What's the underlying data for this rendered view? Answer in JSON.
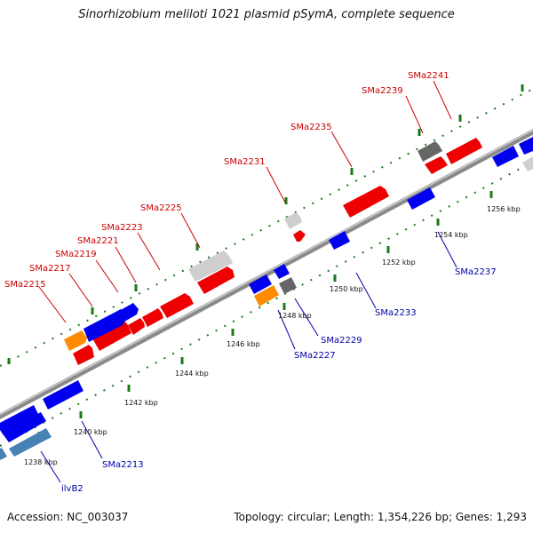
{
  "title": "Sinorhizobium meliloti 1021 plasmid pSymA, complete sequence",
  "footer": {
    "accession": "Accession: NC_003037",
    "summary": "Topology: circular; Length: 1,354,226 bp; Genes: 1,293"
  },
  "colors": {
    "backbone": "#8a8a8a",
    "forward_label": "#cc0000",
    "reverse_label": "#0000aa",
    "tick": "#1a7a1a",
    "red_gene": "#ee0000",
    "blue_gene": "#0000ee",
    "orange_gene": "#ff8c00",
    "gray_gene": "#cfcfcf",
    "dark_gene": "#666666",
    "steel_gene": "#4682b4"
  },
  "kbp_labels": [
    "1238 kbp",
    "1240 kbp",
    "1242 kbp",
    "1244 kbp",
    "1246 kbp",
    "1248 kbp",
    "1250 kbp",
    "1252 kbp",
    "1254 kbp",
    "1256 kbp"
  ],
  "forward_labels": [
    "SMa2215",
    "SMa2217",
    "SMa2219",
    "SMa2221",
    "SMa2223",
    "SMa2225",
    "SMa2231",
    "SMa2235",
    "SMa2239",
    "SMa2241"
  ],
  "reverse_labels": [
    "ilvB2",
    "SMa2213",
    "SMa2227",
    "SMa2229",
    "SMa2233",
    "SMa2237"
  ]
}
